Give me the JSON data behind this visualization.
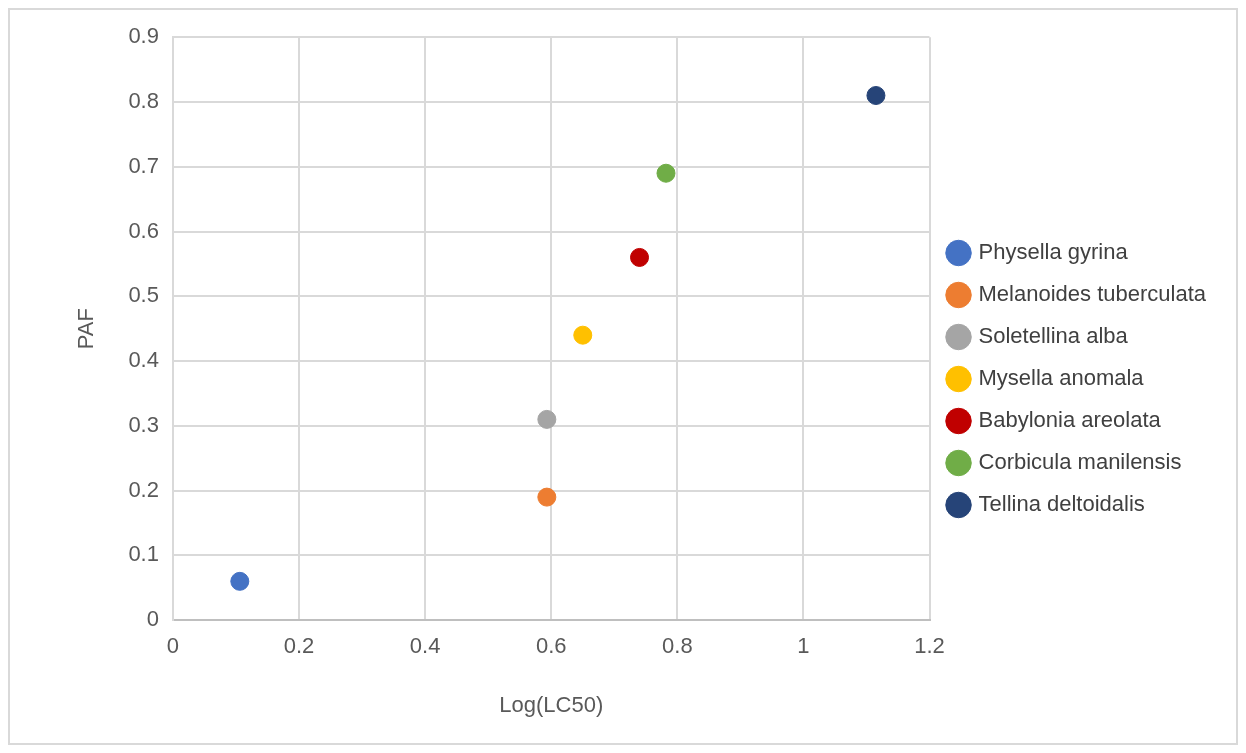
{
  "chart_data": {
    "type": "scatter",
    "xlabel": "Log(LC50)",
    "ylabel": "PAF",
    "xlim": [
      0,
      1.2
    ],
    "xticks": [
      0,
      0.2,
      0.4,
      0.6,
      0.8,
      1,
      1.2
    ],
    "ylim": [
      0,
      0.9
    ],
    "yticks": [
      0,
      0.1,
      0.2,
      0.3,
      0.4,
      0.5,
      0.6,
      0.7,
      0.8,
      0.9
    ],
    "grid": true,
    "legend": "right",
    "marker": "circle",
    "series": [
      {
        "name": "Physella gyrina",
        "color": "#4472c4",
        "x": [
          0.106
        ],
        "values": [
          0.06
        ]
      },
      {
        "name": "Melanoides tuberculata",
        "color": "#ed7d31",
        "x": [
          0.593
        ],
        "values": [
          0.19
        ]
      },
      {
        "name": "Soletellina alba",
        "color": "#a5a5a5",
        "x": [
          0.593
        ],
        "values": [
          0.31
        ]
      },
      {
        "name": "Mysella anomala",
        "color": "#ffc000",
        "x": [
          0.65
        ],
        "values": [
          0.44
        ]
      },
      {
        "name": "Babylonia areolata",
        "color": "#c00000",
        "x": [
          0.74
        ],
        "values": [
          0.56
        ]
      },
      {
        "name": "Corbicula manilensis",
        "color": "#70ad47",
        "x": [
          0.782
        ],
        "values": [
          0.69
        ]
      },
      {
        "name": "Tellina deltoidalis",
        "color": "#264478",
        "x": [
          1.115
        ],
        "values": [
          0.81
        ]
      }
    ]
  }
}
